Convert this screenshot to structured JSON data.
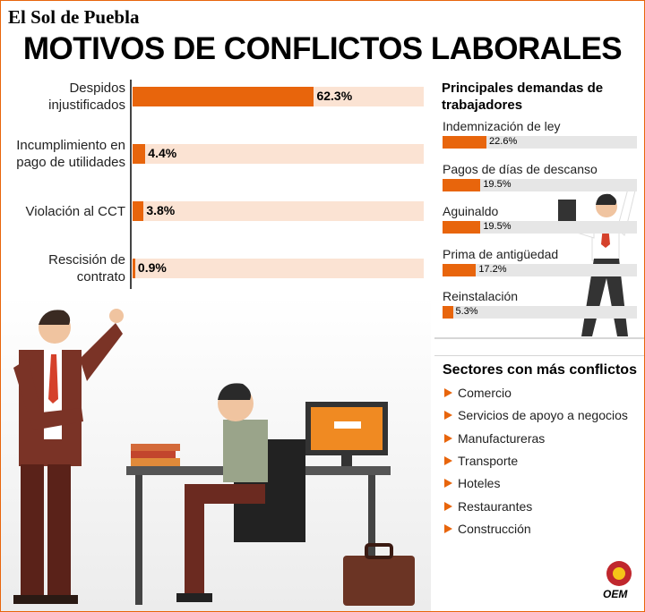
{
  "brand": "El Sol de Puebla",
  "title": "MOTIVOS DE CONFLICTOS LABORALES",
  "chart_data": [
    {
      "type": "bar",
      "orientation": "horizontal",
      "categories": [
        "Despidos injustificados",
        "Incumplimiento en pago de utilidades",
        "Violación al CCT",
        "Rescisión de contrato"
      ],
      "values": [
        62.3,
        4.4,
        3.8,
        0.9
      ],
      "value_labels": [
        "62.3%",
        "4.4%",
        "3.8%",
        "0.9%"
      ],
      "color": "#e8650c",
      "xlim": [
        0,
        100
      ]
    },
    {
      "type": "bar",
      "orientation": "horizontal",
      "title": "Principales demandas de trabajadores",
      "categories": [
        "Indemnización de ley",
        "Pagos de días de descanso",
        "Aguinaldo",
        "Prima de antigüedad",
        "Reinstalación"
      ],
      "values": [
        22.6,
        19.5,
        19.5,
        17.2,
        5.3
      ],
      "value_labels": [
        "22.6%",
        "19.5%",
        "19.5%",
        "17.2%",
        "5.3%"
      ],
      "color": "#e8650c",
      "xlim": [
        0,
        100
      ]
    }
  ],
  "sectors": {
    "title": "Sectores con más conflictos",
    "items": [
      "Comercio",
      "Servicios de apoyo a negocios",
      "Manufactureras",
      "Transporte",
      "Hoteles",
      "Restaurantes",
      "Construcción"
    ]
  },
  "logo": "OEM"
}
